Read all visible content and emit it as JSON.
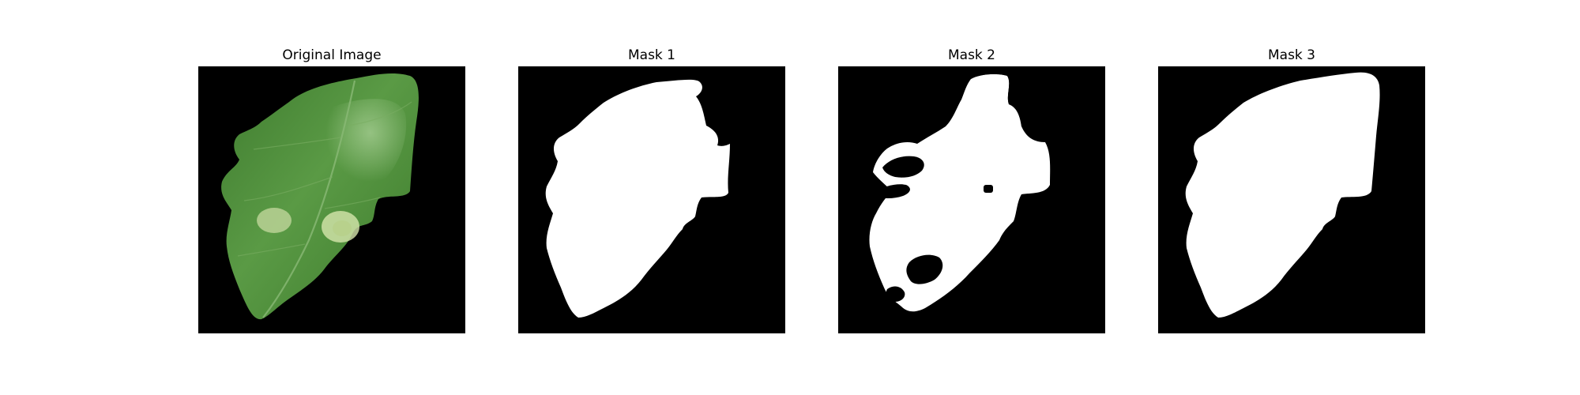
{
  "figure": {
    "panels": [
      {
        "title": "Original Image",
        "content": "leaf-photo"
      },
      {
        "title": "Mask 1",
        "content": "leaf-segmentation-mask"
      },
      {
        "title": "Mask 2",
        "content": "leaf-segmentation-mask"
      },
      {
        "title": "Mask 3",
        "content": "leaf-segmentation-mask"
      }
    ]
  },
  "colors": {
    "background": "#000000",
    "mask_foreground": "#ffffff",
    "leaf_green": "#4d8f3a",
    "leaf_highlight": "#9fc98a",
    "lesion": "#cfe0a8"
  }
}
